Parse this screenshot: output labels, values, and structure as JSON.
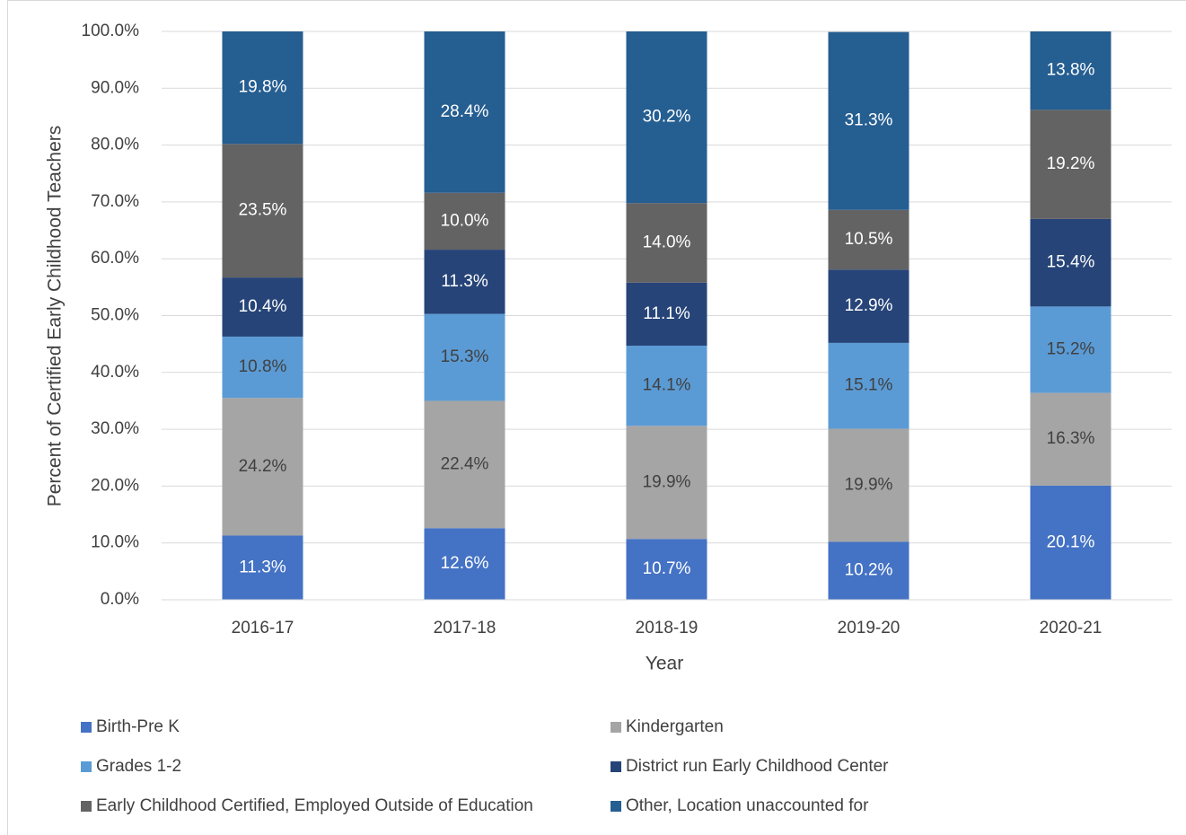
{
  "chart_data": {
    "type": "stacked_bar",
    "x_label": "Year",
    "y_label": "Percent of Certified Early Childhood Teachers",
    "categories": [
      "2016-17",
      "2017-18",
      "2018-19",
      "2019-20",
      "2020-21"
    ],
    "series": [
      {
        "name": "Birth-Pre K",
        "color": "#4472c4",
        "values": [
          11.3,
          12.6,
          10.7,
          10.2,
          20.1
        ],
        "value_labels": [
          "11.3%",
          "12.6%",
          "10.7%",
          "10.2%",
          "20.1%"
        ]
      },
      {
        "name": "Kindergarten",
        "color": "#a5a5a5",
        "values": [
          24.2,
          22.4,
          19.9,
          19.9,
          16.3
        ],
        "value_labels": [
          "24.2%",
          "22.4%",
          "19.9%",
          "19.9%",
          "16.3%"
        ]
      },
      {
        "name": "Grades 1-2",
        "color": "#5b9bd5",
        "values": [
          10.8,
          15.3,
          14.1,
          15.1,
          15.2
        ],
        "value_labels": [
          "10.8%",
          "15.3%",
          "14.1%",
          "15.1%",
          "15.2%"
        ]
      },
      {
        "name": "District run Early Childhood Center",
        "color": "#264478",
        "values": [
          10.4,
          11.3,
          11.1,
          12.9,
          15.4
        ],
        "value_labels": [
          "10.4%",
          "11.3%",
          "11.1%",
          "12.9%",
          "15.4%"
        ]
      },
      {
        "name": "Early Childhood Certified, Employed Outside of Education",
        "color": "#636363",
        "values": [
          23.5,
          10.0,
          14.0,
          10.5,
          19.2
        ],
        "value_labels": [
          "23.5%",
          "10.0%",
          "14.0%",
          "10.5%",
          "19.2%"
        ]
      },
      {
        "name": "Other, Location unaccounted for",
        "color": "#255e91",
        "values": [
          19.8,
          28.4,
          30.2,
          31.3,
          13.8
        ],
        "value_labels": [
          "19.8%",
          "28.4%",
          "30.2%",
          "31.3%",
          "13.8%"
        ]
      }
    ],
    "ylim": [
      0,
      100
    ],
    "yticks": [
      {
        "value": 0,
        "label": "0.0%"
      },
      {
        "value": 10,
        "label": "10.0%"
      },
      {
        "value": 20,
        "label": "20.0%"
      },
      {
        "value": 30,
        "label": "30.0%"
      },
      {
        "value": 40,
        "label": "40.0%"
      },
      {
        "value": 50,
        "label": "50.0%"
      },
      {
        "value": 60,
        "label": "60.0%"
      },
      {
        "value": 70,
        "label": "70.0%"
      },
      {
        "value": 80,
        "label": "80.0%"
      },
      {
        "value": 90,
        "label": "90.0%"
      },
      {
        "value": 100,
        "label": "100.0%"
      }
    ],
    "grid": true,
    "legend": "bottom"
  }
}
